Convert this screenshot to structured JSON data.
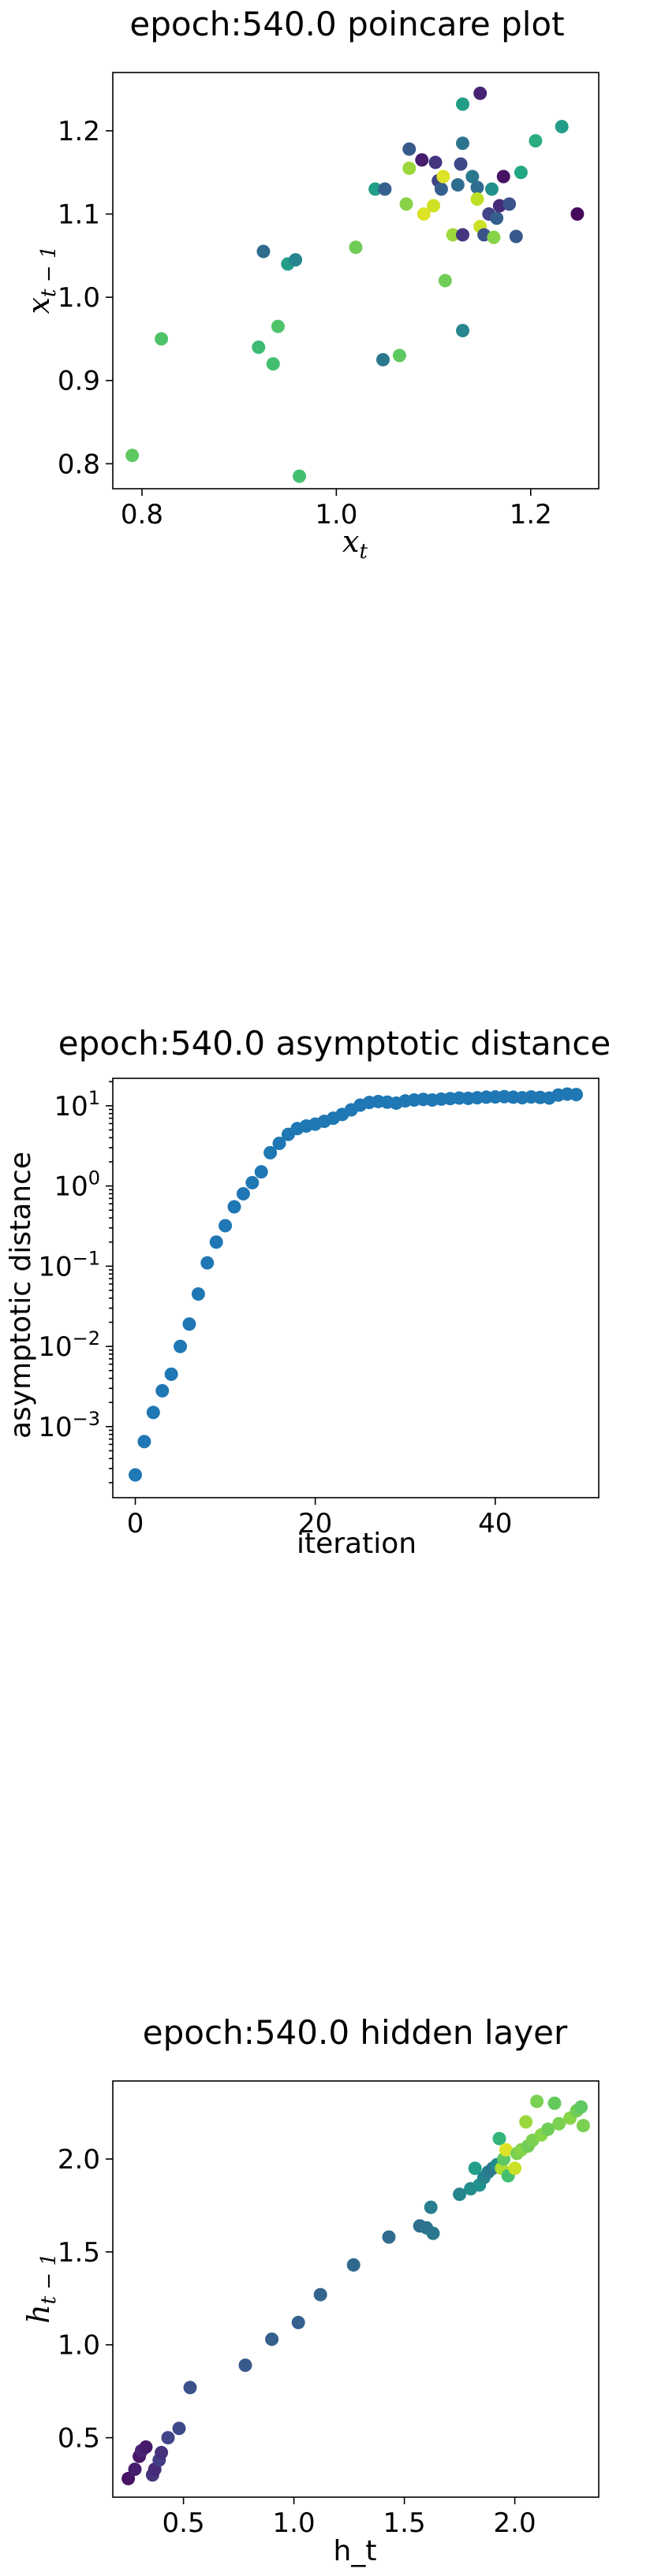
{
  "chart_data": [
    {
      "type": "scatter",
      "title": "epoch:540.0 poincare plot",
      "xlabel": "x_t",
      "ylabel": "x_{t-1}",
      "xlim": [
        0.77,
        1.27
      ],
      "ylim": [
        0.77,
        1.27
      ],
      "xticks": [
        0.8,
        1.0,
        1.2
      ],
      "xtick_labels": [
        "0.8",
        "1.0",
        "1.2"
      ],
      "yticks": [
        0.8,
        0.9,
        1.0,
        1.1,
        1.2
      ],
      "ytick_labels": [
        "0.8",
        "0.9",
        "1.0",
        "1.1",
        "1.2"
      ],
      "colormap": "viridis",
      "points": [
        {
          "x": 0.79,
          "y": 0.81,
          "c": 0.75
        },
        {
          "x": 0.82,
          "y": 0.95,
          "c": 0.72
        },
        {
          "x": 0.925,
          "y": 1.055,
          "c": 0.35
        },
        {
          "x": 0.92,
          "y": 0.94,
          "c": 0.68
        },
        {
          "x": 0.935,
          "y": 0.92,
          "c": 0.7
        },
        {
          "x": 0.94,
          "y": 0.965,
          "c": 0.72
        },
        {
          "x": 0.95,
          "y": 1.04,
          "c": 0.55
        },
        {
          "x": 0.958,
          "y": 1.045,
          "c": 0.45
        },
        {
          "x": 0.962,
          "y": 0.785,
          "c": 0.7
        },
        {
          "x": 1.02,
          "y": 1.06,
          "c": 0.78
        },
        {
          "x": 1.04,
          "y": 1.13,
          "c": 0.55
        },
        {
          "x": 1.05,
          "y": 1.13,
          "c": 0.3
        },
        {
          "x": 1.048,
          "y": 0.925,
          "c": 0.4
        },
        {
          "x": 1.065,
          "y": 0.93,
          "c": 0.75
        },
        {
          "x": 1.072,
          "y": 1.112,
          "c": 0.82
        },
        {
          "x": 1.075,
          "y": 1.155,
          "c": 0.85
        },
        {
          "x": 1.075,
          "y": 1.178,
          "c": 0.28
        },
        {
          "x": 1.088,
          "y": 1.165,
          "c": 0.08
        },
        {
          "x": 1.09,
          "y": 1.1,
          "c": 0.95
        },
        {
          "x": 1.1,
          "y": 1.11,
          "c": 0.93
        },
        {
          "x": 1.102,
          "y": 1.162,
          "c": 0.15
        },
        {
          "x": 1.105,
          "y": 1.14,
          "c": 0.2
        },
        {
          "x": 1.108,
          "y": 1.13,
          "c": 0.3
        },
        {
          "x": 1.11,
          "y": 1.145,
          "c": 0.95
        },
        {
          "x": 1.112,
          "y": 1.02,
          "c": 0.78
        },
        {
          "x": 1.12,
          "y": 1.075,
          "c": 0.85
        },
        {
          "x": 1.125,
          "y": 1.135,
          "c": 0.35
        },
        {
          "x": 1.128,
          "y": 1.16,
          "c": 0.22
        },
        {
          "x": 1.13,
          "y": 1.185,
          "c": 0.38
        },
        {
          "x": 1.13,
          "y": 1.232,
          "c": 0.55
        },
        {
          "x": 1.13,
          "y": 0.96,
          "c": 0.45
        },
        {
          "x": 1.13,
          "y": 1.075,
          "c": 0.15
        },
        {
          "x": 1.14,
          "y": 1.145,
          "c": 0.4
        },
        {
          "x": 1.145,
          "y": 1.132,
          "c": 0.35
        },
        {
          "x": 1.148,
          "y": 1.245,
          "c": 0.1
        },
        {
          "x": 1.145,
          "y": 1.118,
          "c": 0.9
        },
        {
          "x": 1.148,
          "y": 1.085,
          "c": 0.92
        },
        {
          "x": 1.152,
          "y": 1.075,
          "c": 0.25
        },
        {
          "x": 1.157,
          "y": 1.1,
          "c": 0.2
        },
        {
          "x": 1.16,
          "y": 1.13,
          "c": 0.5
        },
        {
          "x": 1.162,
          "y": 1.072,
          "c": 0.82
        },
        {
          "x": 1.165,
          "y": 1.095,
          "c": 0.3
        },
        {
          "x": 1.168,
          "y": 1.11,
          "c": 0.12
        },
        {
          "x": 1.172,
          "y": 1.145,
          "c": 0.05
        },
        {
          "x": 1.178,
          "y": 1.112,
          "c": 0.25
        },
        {
          "x": 1.185,
          "y": 1.073,
          "c": 0.28
        },
        {
          "x": 1.19,
          "y": 1.15,
          "c": 0.6
        },
        {
          "x": 1.205,
          "y": 1.188,
          "c": 0.62
        },
        {
          "x": 1.232,
          "y": 1.205,
          "c": 0.55
        },
        {
          "x": 1.248,
          "y": 1.1,
          "c": 0.02
        }
      ]
    },
    {
      "type": "scatter",
      "title": "epoch:540.0 asymptotic distance",
      "xlabel": "iteration",
      "ylabel": "asymptotic distance",
      "yscale": "log",
      "xlim": [
        -2.5,
        51.5
      ],
      "ylim": [
        0.00013,
        22
      ],
      "xticks": [
        0,
        20,
        40
      ],
      "xtick_labels": [
        "0",
        "20",
        "40"
      ],
      "yticks": [
        0.001,
        0.01,
        0.1,
        1,
        10
      ],
      "ytick_labels": [
        "10^-3",
        "10^-2",
        "10^-1",
        "10^0",
        "10^1"
      ],
      "color": "#1f77b4",
      "x": [
        0,
        1,
        2,
        3,
        4,
        5,
        6,
        7,
        8,
        9,
        10,
        11,
        12,
        13,
        14,
        15,
        16,
        17,
        18,
        19,
        20,
        21,
        22,
        23,
        24,
        25,
        26,
        27,
        28,
        29,
        30,
        31,
        32,
        33,
        34,
        35,
        36,
        37,
        38,
        39,
        40,
        41,
        42,
        43,
        44,
        45,
        46,
        47,
        48,
        49
      ],
      "y": [
        0.00025,
        0.00065,
        0.0015,
        0.0028,
        0.0045,
        0.01,
        0.019,
        0.045,
        0.11,
        0.2,
        0.32,
        0.55,
        0.8,
        1.1,
        1.5,
        2.6,
        3.4,
        4.4,
        5.2,
        5.6,
        5.9,
        6.4,
        7.0,
        7.8,
        8.9,
        10.2,
        11.0,
        11.3,
        11.1,
        10.8,
        11.5,
        11.8,
        12.0,
        11.8,
        12.1,
        12.3,
        12.5,
        12.4,
        12.6,
        12.8,
        12.9,
        13.0,
        12.8,
        12.6,
        12.9,
        12.7,
        12.5,
        13.6,
        14.0,
        13.8
      ]
    },
    {
      "type": "scatter",
      "title": "epoch:540.0 hidden layer",
      "xlabel": "h_t",
      "ylabel": "h_{t-1}",
      "xlim": [
        0.18,
        2.38
      ],
      "ylim": [
        0.18,
        2.42
      ],
      "xticks": [
        0.5,
        1.0,
        1.5,
        2.0
      ],
      "xtick_labels": [
        "0.5",
        "1.0",
        "1.5",
        "2.0"
      ],
      "yticks": [
        0.5,
        1.0,
        1.5,
        2.0
      ],
      "ytick_labels": [
        "0.5",
        "1.0",
        "1.5",
        "2.0"
      ],
      "colormap": "viridis",
      "points": [
        {
          "x": 0.25,
          "y": 0.28,
          "c": 0.05
        },
        {
          "x": 0.28,
          "y": 0.33,
          "c": 0.08
        },
        {
          "x": 0.3,
          "y": 0.4,
          "c": 0.06
        },
        {
          "x": 0.31,
          "y": 0.43,
          "c": 0.1
        },
        {
          "x": 0.33,
          "y": 0.45,
          "c": 0.07
        },
        {
          "x": 0.36,
          "y": 0.3,
          "c": 0.15
        },
        {
          "x": 0.37,
          "y": 0.33,
          "c": 0.12
        },
        {
          "x": 0.39,
          "y": 0.38,
          "c": 0.18
        },
        {
          "x": 0.4,
          "y": 0.42,
          "c": 0.14
        },
        {
          "x": 0.43,
          "y": 0.5,
          "c": 0.2
        },
        {
          "x": 0.48,
          "y": 0.55,
          "c": 0.22
        },
        {
          "x": 0.53,
          "y": 0.77,
          "c": 0.25
        },
        {
          "x": 0.78,
          "y": 0.89,
          "c": 0.28
        },
        {
          "x": 0.9,
          "y": 1.03,
          "c": 0.3
        },
        {
          "x": 1.02,
          "y": 1.12,
          "c": 0.3
        },
        {
          "x": 1.12,
          "y": 1.27,
          "c": 0.32
        },
        {
          "x": 1.27,
          "y": 1.43,
          "c": 0.34
        },
        {
          "x": 1.43,
          "y": 1.58,
          "c": 0.35
        },
        {
          "x": 1.57,
          "y": 1.64,
          "c": 0.36
        },
        {
          "x": 1.6,
          "y": 1.63,
          "c": 0.38
        },
        {
          "x": 1.62,
          "y": 1.74,
          "c": 0.42
        },
        {
          "x": 1.63,
          "y": 1.6,
          "c": 0.4
        },
        {
          "x": 1.75,
          "y": 1.81,
          "c": 0.45
        },
        {
          "x": 1.8,
          "y": 1.84,
          "c": 0.48
        },
        {
          "x": 1.82,
          "y": 1.95,
          "c": 0.55
        },
        {
          "x": 1.84,
          "y": 1.86,
          "c": 0.5
        },
        {
          "x": 1.86,
          "y": 1.9,
          "c": 0.45
        },
        {
          "x": 1.88,
          "y": 1.93,
          "c": 0.42
        },
        {
          "x": 1.9,
          "y": 1.95,
          "c": 0.4
        },
        {
          "x": 1.92,
          "y": 1.97,
          "c": 0.48
        },
        {
          "x": 1.93,
          "y": 2.11,
          "c": 0.65
        },
        {
          "x": 1.94,
          "y": 1.95,
          "c": 0.88
        },
        {
          "x": 1.95,
          "y": 2.0,
          "c": 0.75
        },
        {
          "x": 1.96,
          "y": 2.05,
          "c": 0.95
        },
        {
          "x": 1.97,
          "y": 1.91,
          "c": 0.7
        },
        {
          "x": 2.0,
          "y": 1.95,
          "c": 0.92
        },
        {
          "x": 2.01,
          "y": 2.03,
          "c": 0.8
        },
        {
          "x": 2.03,
          "y": 2.05,
          "c": 0.82
        },
        {
          "x": 2.05,
          "y": 2.2,
          "c": 0.85
        },
        {
          "x": 2.06,
          "y": 2.07,
          "c": 0.78
        },
        {
          "x": 2.08,
          "y": 2.1,
          "c": 0.8
        },
        {
          "x": 2.1,
          "y": 2.31,
          "c": 0.8
        },
        {
          "x": 2.12,
          "y": 2.13,
          "c": 0.82
        },
        {
          "x": 2.15,
          "y": 2.16,
          "c": 0.78
        },
        {
          "x": 2.18,
          "y": 2.3,
          "c": 0.76
        },
        {
          "x": 2.2,
          "y": 2.19,
          "c": 0.8
        },
        {
          "x": 2.25,
          "y": 2.22,
          "c": 0.82
        },
        {
          "x": 2.28,
          "y": 2.26,
          "c": 0.78
        },
        {
          "x": 2.3,
          "y": 2.28,
          "c": 0.75
        },
        {
          "x": 2.31,
          "y": 2.18,
          "c": 0.8
        }
      ]
    }
  ]
}
